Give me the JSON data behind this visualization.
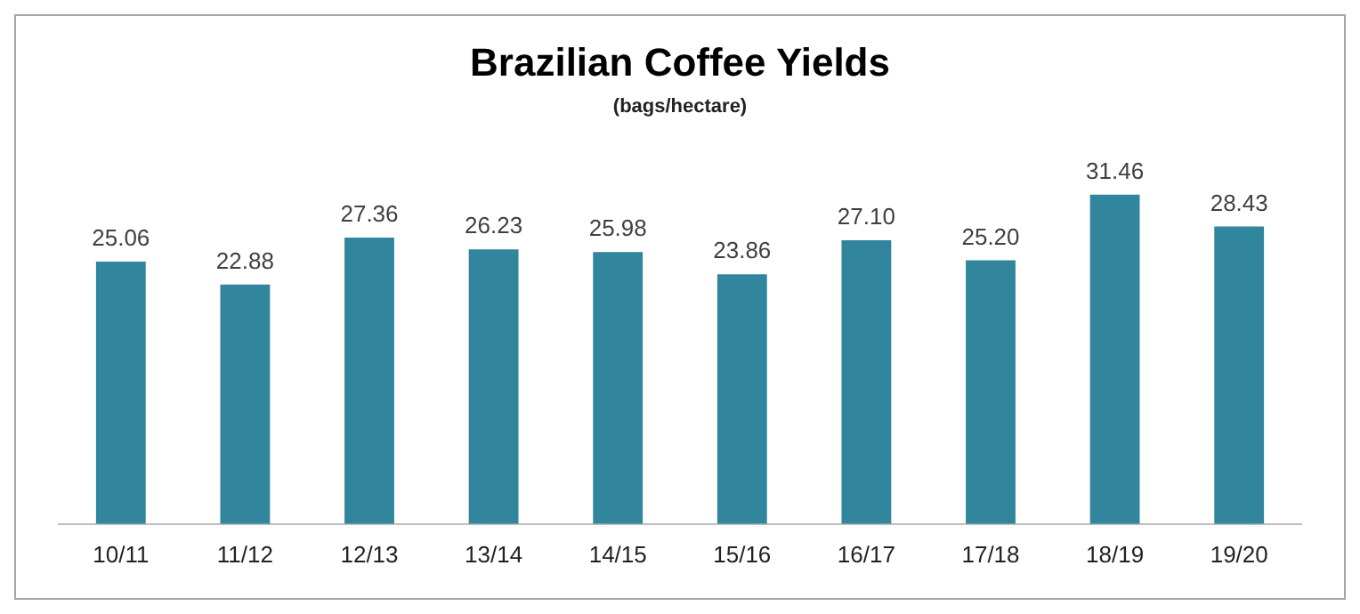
{
  "chart_data": {
    "type": "bar",
    "title": "Brazilian Coffee Yields",
    "subtitle": "(bags/hectare)",
    "categories": [
      "10/11",
      "11/12",
      "12/13",
      "13/14",
      "14/15",
      "15/16",
      "16/17",
      "17/18",
      "18/19",
      "19/20"
    ],
    "values": [
      25.06,
      22.88,
      27.36,
      26.23,
      25.98,
      23.86,
      27.1,
      25.2,
      31.46,
      28.43
    ],
    "value_labels": [
      "25.06",
      "22.88",
      "27.36",
      "26.23",
      "25.98",
      "23.86",
      "27.10",
      "25.20",
      "31.46",
      "28.43"
    ],
    "color": "#31859c",
    "grid": false,
    "legend": false
  }
}
